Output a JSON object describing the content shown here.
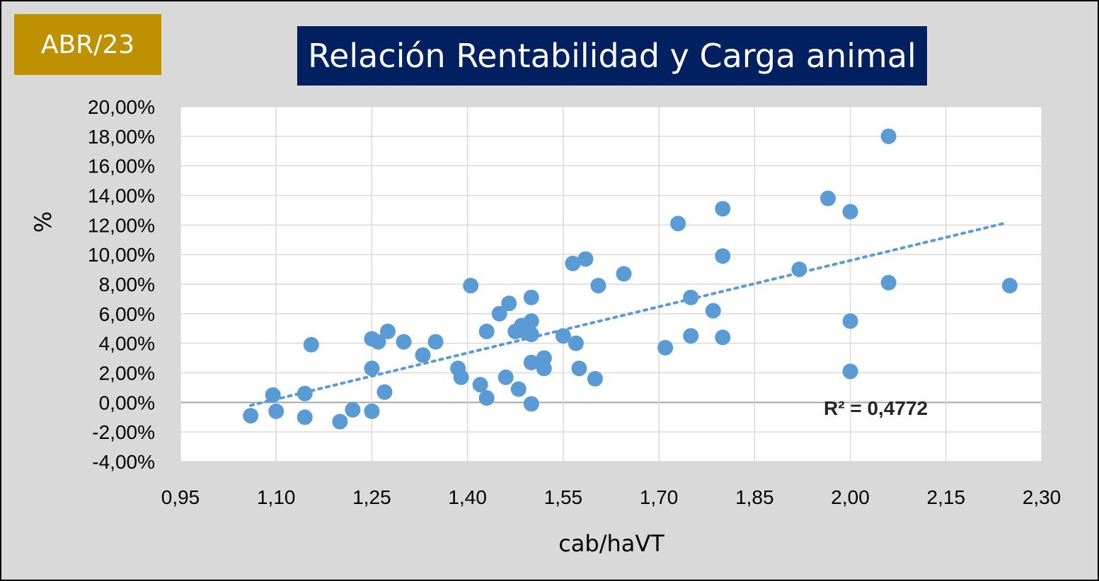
{
  "header": {
    "period_tag": "ABR/23",
    "title": "Relación Rentabilidad y Carga animal"
  },
  "colors": {
    "tag_bg": "#bf9000",
    "title_bg": "#002060",
    "point": "#5b9bd5",
    "trendline": "#5b9bd5",
    "grid": "#d9d9d9",
    "zero_line": "#a6a6a6"
  },
  "chart_data": {
    "type": "scatter",
    "title": "Relación Rentabilidad y Carga animal",
    "xlabel": "cab/haVT",
    "ylabel": "%",
    "xlim": [
      0.95,
      2.3
    ],
    "ylim": [
      -4,
      20
    ],
    "x_ticks": [
      "0,95",
      "1,10",
      "1,25",
      "1,40",
      "1,55",
      "1,70",
      "1,85",
      "2,00",
      "2,15",
      "2,30"
    ],
    "y_ticks": [
      "-4,00%",
      "-2,00%",
      "0,00%",
      "2,00%",
      "4,00%",
      "6,00%",
      "8,00%",
      "10,00%",
      "12,00%",
      "14,00%",
      "16,00%",
      "18,00%",
      "20,00%"
    ],
    "grid": true,
    "legend": "none",
    "trendline": {
      "type": "linear",
      "style": "dotted",
      "x": [
        1.06,
        2.24
      ],
      "y": [
        -0.2,
        12.1
      ]
    },
    "annotation": "R² = 0,4772",
    "points": [
      [
        1.06,
        -0.9
      ],
      [
        1.095,
        0.5
      ],
      [
        1.1,
        -0.6
      ],
      [
        1.145,
        0.6
      ],
      [
        1.145,
        -1.0
      ],
      [
        1.155,
        3.9
      ],
      [
        1.2,
        -1.3
      ],
      [
        1.22,
        -0.5
      ],
      [
        1.25,
        -0.6
      ],
      [
        1.25,
        2.3
      ],
      [
        1.25,
        4.3
      ],
      [
        1.26,
        4.1
      ],
      [
        1.27,
        0.7
      ],
      [
        1.275,
        4.8
      ],
      [
        1.3,
        4.1
      ],
      [
        1.33,
        3.2
      ],
      [
        1.35,
        4.1
      ],
      [
        1.385,
        2.3
      ],
      [
        1.39,
        1.7
      ],
      [
        1.405,
        7.9
      ],
      [
        1.42,
        1.2
      ],
      [
        1.43,
        4.8
      ],
      [
        1.43,
        0.3
      ],
      [
        1.45,
        6.0
      ],
      [
        1.46,
        1.7
      ],
      [
        1.465,
        6.7
      ],
      [
        1.475,
        4.8
      ],
      [
        1.48,
        0.9
      ],
      [
        1.485,
        5.2
      ],
      [
        1.49,
        4.8
      ],
      [
        1.5,
        7.1
      ],
      [
        1.5,
        5.5
      ],
      [
        1.5,
        4.6
      ],
      [
        1.5,
        2.7
      ],
      [
        1.5,
        -0.1
      ],
      [
        1.52,
        3.0
      ],
      [
        1.52,
        2.3
      ],
      [
        1.55,
        4.5
      ],
      [
        1.565,
        9.4
      ],
      [
        1.57,
        4.0
      ],
      [
        1.575,
        2.3
      ],
      [
        1.585,
        9.7
      ],
      [
        1.6,
        1.6
      ],
      [
        1.605,
        7.9
      ],
      [
        1.645,
        8.7
      ],
      [
        1.71,
        3.7
      ],
      [
        1.73,
        12.1
      ],
      [
        1.75,
        7.1
      ],
      [
        1.75,
        4.5
      ],
      [
        1.785,
        6.2
      ],
      [
        1.8,
        13.1
      ],
      [
        1.8,
        9.9
      ],
      [
        1.8,
        4.4
      ],
      [
        1.92,
        9.0
      ],
      [
        1.965,
        13.8
      ],
      [
        2.0,
        12.9
      ],
      [
        2.0,
        5.5
      ],
      [
        2.0,
        2.1
      ],
      [
        2.06,
        18.0
      ],
      [
        2.06,
        8.1
      ],
      [
        2.25,
        7.9
      ]
    ]
  }
}
